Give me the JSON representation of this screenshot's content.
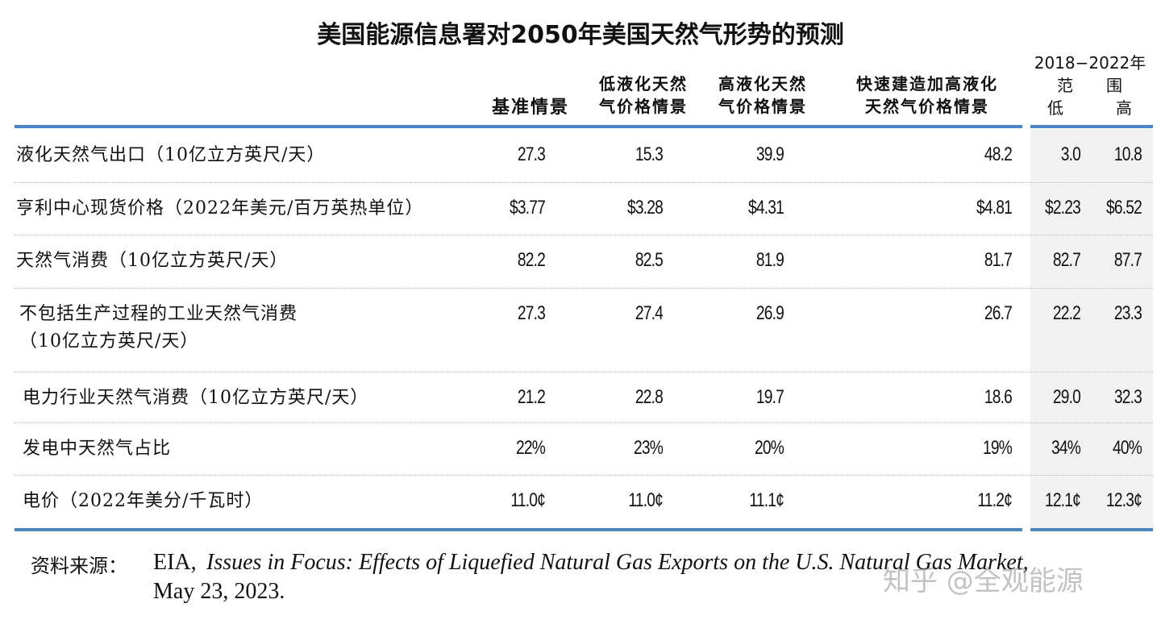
{
  "header": {
    "title": "美国能源信息署对2050年美国天然气形势的预测"
  },
  "table": {
    "columns": [
      [
        "基准情景"
      ],
      [
        "低液化天然",
        "气价格情景"
      ],
      [
        "高液化天然",
        "气价格情景"
      ],
      [
        "快速建造加高液化",
        "天然气价格情景"
      ]
    ],
    "range": {
      "years": "2018−2022年",
      "label": [
        "范",
        "围"
      ],
      "low": "低",
      "high": "高"
    },
    "rows": [
      {
        "label": [
          "液化天然气出口（10亿立方英尺/天）"
        ],
        "values": [
          "27.3",
          "15.3",
          "39.9",
          "48.2",
          "3.0",
          "10.8"
        ]
      },
      {
        "label": [
          "亨利中心现货价格（2022年美元/百万英热单位）"
        ],
        "values": [
          "$3.77",
          "$3.28",
          "$4.31",
          "$4.81",
          "$2.23",
          "$6.52"
        ]
      },
      {
        "label": [
          "天然气消费（10亿立方英尺/天）"
        ],
        "values": [
          "82.2",
          "82.5",
          "81.9",
          "81.7",
          "82.7",
          "87.7"
        ]
      },
      {
        "label": [
          "不包括生产过程的工业天然气消费",
          "（10亿立方英尺/天）"
        ],
        "values": [
          "27.3",
          "27.4",
          "26.9",
          "26.7",
          "22.2",
          "23.3"
        ]
      },
      {
        "label": [
          "电力行业天然气消费（10亿立方英尺/天）"
        ],
        "values": [
          "21.2",
          "22.8",
          "19.7",
          "18.6",
          "29.0",
          "32.3"
        ]
      },
      {
        "label": [
          "发电中天然气占比"
        ],
        "values": [
          "22%",
          "23%",
          "20%",
          "19%",
          "34%",
          "40%"
        ]
      },
      {
        "label": [
          "电价（2022年美分/千瓦时）"
        ],
        "values": [
          "11.0¢",
          "11.0¢",
          "11.1¢",
          "11.2¢",
          "12.1¢",
          "12.3¢"
        ]
      }
    ]
  },
  "source": {
    "prefix": "资料来源：",
    "author": "EIA,",
    "title": "Issues in Focus: Effects of Liquefied Natural Gas Exports on the U.S. Natural Gas Market,",
    "date": "May 23, 2023."
  },
  "watermark": "知乎 @全观能源"
}
